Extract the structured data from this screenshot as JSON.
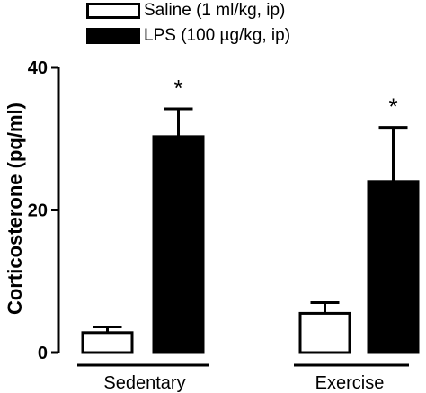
{
  "chart_data": {
    "type": "bar",
    "ylabel": "Corticosterone (pq/ml)",
    "ylim": [
      0,
      40
    ],
    "yticks": [
      0,
      20,
      40
    ],
    "categories": [
      "Sedentary",
      "Exercise"
    ],
    "series": [
      {
        "name": "Saline (1 ml/kg, ip)",
        "fill": "#ffffff",
        "values": [
          2.8,
          5.5
        ],
        "errors": [
          0.8,
          1.5
        ]
      },
      {
        "name": "LPS (100 µg/kg, ip)",
        "fill": "#000000",
        "values": [
          30.3,
          24.0
        ],
        "errors": [
          3.9,
          7.6
        ]
      }
    ],
    "annotations": [
      {
        "text": "*",
        "category": "Sedentary",
        "series": 1
      },
      {
        "text": "*",
        "category": "Exercise",
        "series": 1
      }
    ],
    "legend_position": "top"
  }
}
